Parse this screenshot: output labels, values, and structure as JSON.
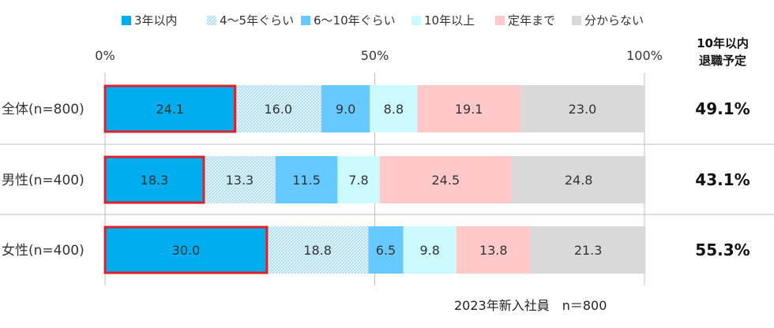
{
  "chart_data": {
    "type": "bar",
    "orientation": "horizontal",
    "stacked": true,
    "categories": [
      "全体(n=800)",
      "男性(n=400)",
      "女性(n=400)"
    ],
    "series": [
      {
        "name": "3年以内",
        "color": "#00aeef",
        "values": [
          24.1,
          18.3,
          30.0
        ]
      },
      {
        "name": "4～5年ぐらい",
        "color": "#c9ecfa",
        "pattern": "hatched",
        "values": [
          16.0,
          13.3,
          18.8
        ]
      },
      {
        "name": "6～10年ぐらい",
        "color": "#66c9ff",
        "values": [
          9.0,
          11.5,
          6.5
        ]
      },
      {
        "name": "10年以上",
        "color": "#ccfbff",
        "values": [
          8.8,
          7.8,
          9.8
        ]
      },
      {
        "name": "定年まで",
        "color": "#ffc9c9",
        "values": [
          19.1,
          24.5,
          13.8
        ]
      },
      {
        "name": "分からない",
        "color": "#d9d9d9",
        "values": [
          23.0,
          24.8,
          21.3
        ]
      }
    ],
    "value_labels": [
      [
        "24.1",
        "16.0",
        "9.0",
        "8.8",
        "19.1",
        "23.0"
      ],
      [
        "18.3",
        "13.3",
        "11.5",
        "7.8",
        "24.5",
        "24.8"
      ],
      [
        "30.0",
        "18.8",
        "6.5",
        "9.8",
        "13.8",
        "21.3"
      ]
    ],
    "xlim": [
      0,
      100
    ],
    "x_ticks": [
      "0%",
      "50%",
      "100%"
    ],
    "highlight_series": "3年以内",
    "highlight_color": "#e0202a",
    "legend_position": "top",
    "side_column": {
      "header": [
        "10年以内",
        "退職予定"
      ],
      "values": [
        "49.1%",
        "43.1%",
        "55.3%"
      ]
    }
  },
  "footnote": "2023年新入社員　n＝800"
}
